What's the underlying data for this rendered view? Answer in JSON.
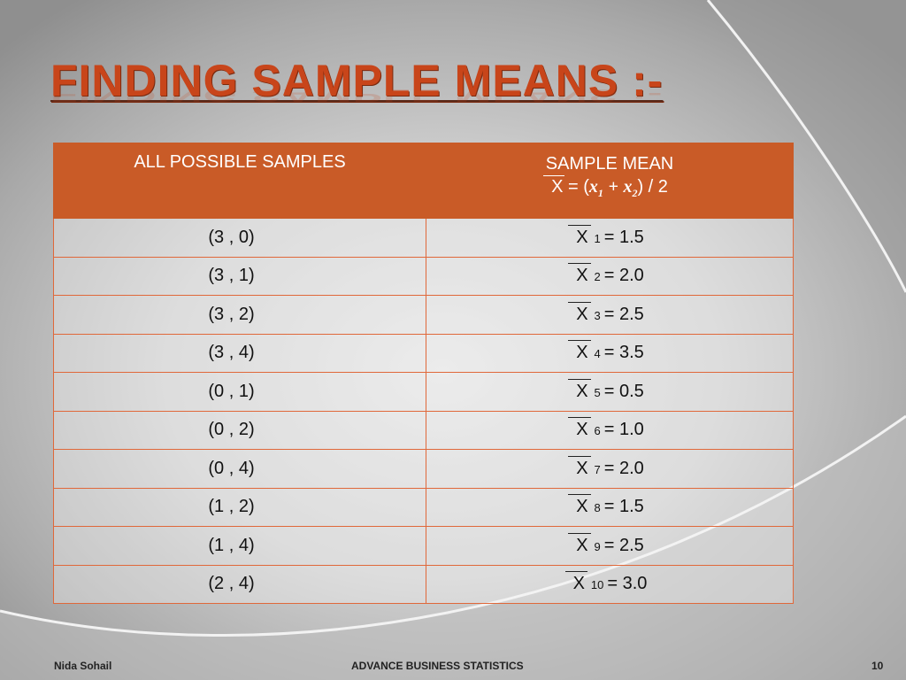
{
  "title": "Finding Sample Means :-",
  "table": {
    "header_samples": "ALL POSSIBLE SAMPLES",
    "header_mean": "SAMPLE MEAN",
    "formula": {
      "x_bar": "X",
      "equals_open": "= (",
      "x1": "x",
      "x1_sub": "1",
      "plus": "+",
      "x2": "x",
      "x2_sub": "2",
      "close_div": ") / 2"
    },
    "rows": [
      {
        "sample": "(3 , 0)",
        "x": "X",
        "sub": "1",
        "value": "= 1.5"
      },
      {
        "sample": "(3 , 1)",
        "x": "X",
        "sub": "2",
        "value": "= 2.0"
      },
      {
        "sample": "(3 , 2)",
        "x": "X",
        "sub": "3",
        "value": "= 2.5"
      },
      {
        "sample": "(3 , 4)",
        "x": "X",
        "sub": "4",
        "value": "= 3.5"
      },
      {
        "sample": "(0 , 1)",
        "x": "X",
        "sub": "5",
        "value": "= 0.5"
      },
      {
        "sample": "(0 , 2)",
        "x": "X",
        "sub": "6",
        "value": "= 1.0"
      },
      {
        "sample": "(0 , 4)",
        "x": "X",
        "sub": "7",
        "value": "= 2.0"
      },
      {
        "sample": "(1 , 2)",
        "x": "X",
        "sub": "8",
        "value": "= 1.5"
      },
      {
        "sample": "(1 , 4)",
        "x": "X",
        "sub": "9",
        "value": "= 2.5"
      },
      {
        "sample": "(2 , 4)",
        "x": "X",
        "sub": "10",
        "value": "= 3.0"
      }
    ]
  },
  "footer": {
    "author": "Nida Sohail",
    "course": "ADVANCE BUSINESS STATISTICS",
    "page": "10"
  },
  "colors": {
    "accent": "#c95b27",
    "title": "#c8451a",
    "border": "#e0683a"
  }
}
